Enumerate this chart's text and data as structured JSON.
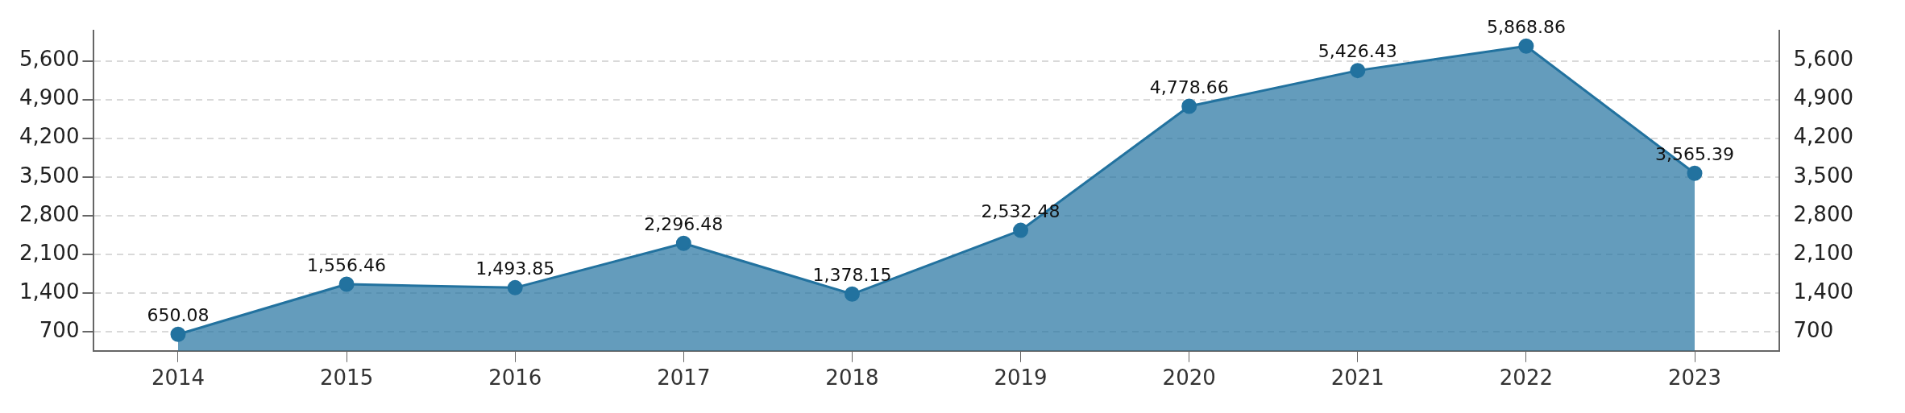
{
  "chart_data": {
    "type": "area",
    "categories": [
      "2014",
      "2015",
      "2016",
      "2017",
      "2018",
      "2019",
      "2020",
      "2021",
      "2022",
      "2023"
    ],
    "series": [
      {
        "color": "#22729f",
        "values": [
          650.08,
          1556.46,
          1493.85,
          2296.48,
          1378.15,
          2532.48,
          4778.66,
          5426.43,
          5868.86,
          3565.39
        ],
        "value_labels": [
          "650.08",
          "1,556.46",
          "1,493.85",
          "2,296.48",
          "1,378.15",
          "2,532.48",
          "4,778.66",
          "5,426.43",
          "5,868.86",
          "3,565.39"
        ]
      }
    ],
    "ylim": [
      350,
      6150
    ],
    "yticks": [
      {
        "value": 700,
        "label": "700"
      },
      {
        "value": 1400,
        "label": "1,400"
      },
      {
        "value": 2100,
        "label": "2,100"
      },
      {
        "value": 2800,
        "label": "2,800"
      },
      {
        "value": 3500,
        "label": "3,500"
      },
      {
        "value": 4200,
        "label": "4,200"
      },
      {
        "value": 4900,
        "label": "4,900"
      },
      {
        "value": 5600,
        "label": "5,600"
      }
    ],
    "y2lim": [
      350,
      6150
    ],
    "y2ticks": [
      {
        "value": 700,
        "label": "700"
      },
      {
        "value": 1400,
        "label": "1,400"
      },
      {
        "value": 2100,
        "label": "2,100"
      },
      {
        "value": 2800,
        "label": "2,800"
      },
      {
        "value": 3500,
        "label": "3,500"
      },
      {
        "value": 4200,
        "label": "4,200"
      },
      {
        "value": 4900,
        "label": "4,900"
      },
      {
        "value": 5600,
        "label": "5,600"
      }
    ],
    "grid": "y",
    "legend": false,
    "marker": "circle"
  }
}
